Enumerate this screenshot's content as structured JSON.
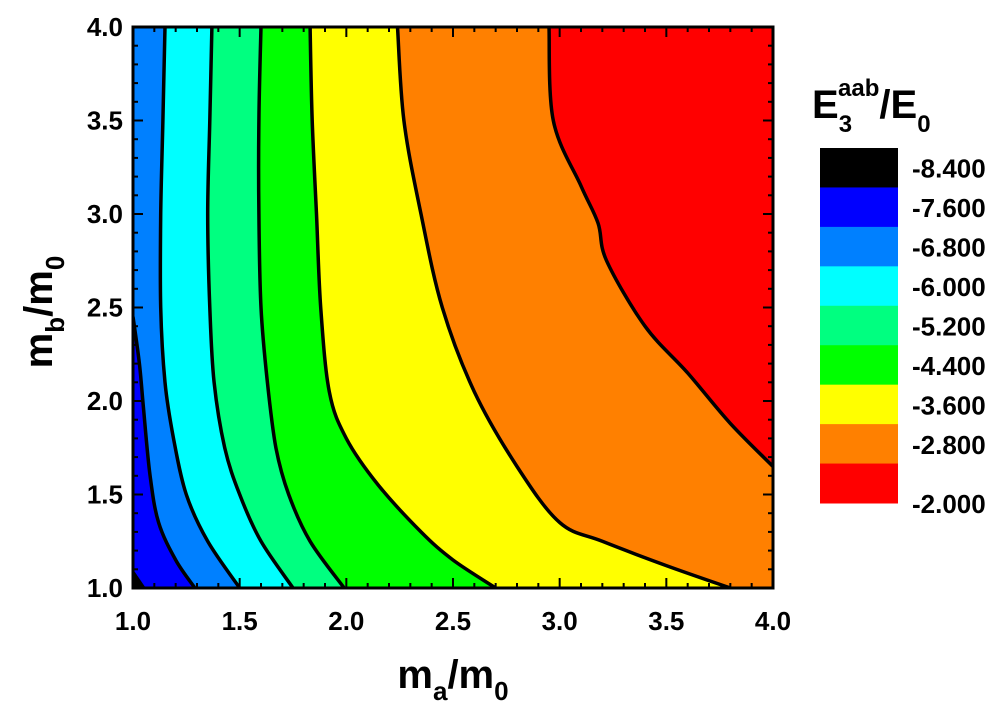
{
  "chart_data": {
    "type": "contour",
    "xlabel": {
      "main": "m",
      "sub": "a",
      "tail": "/m",
      "sub2": "0"
    },
    "ylabel": {
      "main": "m",
      "sub": "b",
      "tail": "/m",
      "sub2": "0"
    },
    "xlim": [
      1.0,
      4.0
    ],
    "ylim": [
      1.0,
      4.0
    ],
    "xticks": [
      "1.0",
      "1.5",
      "2.0",
      "2.5",
      "3.0",
      "3.5",
      "4.0"
    ],
    "yticks": [
      "1.0",
      "1.5",
      "2.0",
      "2.5",
      "3.0",
      "3.5",
      "4.0"
    ],
    "colorbar": {
      "title": {
        "main": "E",
        "sub": "3",
        "sup": "aab",
        "tail": "/E",
        "sub2": "0"
      },
      "levels": [
        -8.4,
        -7.6,
        -6.8,
        -6.0,
        -5.2,
        -4.4,
        -3.6,
        -2.8,
        -2.0
      ],
      "level_labels": [
        "-8.400",
        "-7.600",
        "-6.800",
        "-6.000",
        "-5.200",
        "-4.400",
        "-3.600",
        "-2.800",
        "-2.000"
      ],
      "band_colors": [
        "#000000",
        "#0000ff",
        "#0080ff",
        "#00ffff",
        "#00ff80",
        "#00ff00",
        "#ffff00",
        "#ff8000",
        "#ff0000"
      ]
    },
    "contours": [
      {
        "level": -7.6,
        "points": [
          [
            1.0,
            2.45
          ],
          [
            1.03,
            2.2
          ],
          [
            1.05,
            1.95
          ],
          [
            1.08,
            1.6
          ],
          [
            1.12,
            1.35
          ],
          [
            1.2,
            1.15
          ],
          [
            1.29,
            1.0
          ]
        ]
      },
      {
        "level": -6.8,
        "points": [
          [
            1.15,
            4.0
          ],
          [
            1.14,
            3.5
          ],
          [
            1.13,
            3.0
          ],
          [
            1.13,
            2.5
          ],
          [
            1.15,
            2.1
          ],
          [
            1.19,
            1.8
          ],
          [
            1.25,
            1.5
          ],
          [
            1.35,
            1.25
          ],
          [
            1.5,
            1.0
          ]
        ]
      },
      {
        "level": -6.0,
        "points": [
          [
            1.37,
            4.0
          ],
          [
            1.36,
            3.5
          ],
          [
            1.35,
            3.0
          ],
          [
            1.36,
            2.5
          ],
          [
            1.38,
            2.1
          ],
          [
            1.43,
            1.75
          ],
          [
            1.5,
            1.5
          ],
          [
            1.6,
            1.25
          ],
          [
            1.75,
            1.0
          ]
        ]
      },
      {
        "level": -5.2,
        "points": [
          [
            1.6,
            4.0
          ],
          [
            1.59,
            3.5
          ],
          [
            1.59,
            3.0
          ],
          [
            1.6,
            2.5
          ],
          [
            1.63,
            2.1
          ],
          [
            1.67,
            1.75
          ],
          [
            1.73,
            1.5
          ],
          [
            1.83,
            1.25
          ],
          [
            1.99,
            1.0
          ]
        ]
      },
      {
        "level": -4.4,
        "points": [
          [
            1.83,
            4.0
          ],
          [
            1.84,
            3.5
          ],
          [
            1.86,
            3.0
          ],
          [
            1.88,
            2.5
          ],
          [
            1.92,
            2.05
          ],
          [
            2.0,
            1.8
          ],
          [
            2.15,
            1.55
          ],
          [
            2.35,
            1.3
          ],
          [
            2.5,
            1.15
          ],
          [
            2.7,
            1.0
          ]
        ]
      },
      {
        "level": -3.6,
        "points": [
          [
            2.24,
            4.0
          ],
          [
            2.27,
            3.5
          ],
          [
            2.35,
            3.0
          ],
          [
            2.45,
            2.5
          ],
          [
            2.6,
            2.05
          ],
          [
            2.8,
            1.65
          ],
          [
            3.0,
            1.35
          ],
          [
            3.2,
            1.25
          ],
          [
            3.5,
            1.12
          ],
          [
            3.8,
            1.0
          ]
        ]
      },
      {
        "level": -2.8,
        "points": [
          [
            2.95,
            4.0
          ],
          [
            2.97,
            3.5
          ],
          [
            3.1,
            3.15
          ],
          [
            3.18,
            2.95
          ],
          [
            3.22,
            2.75
          ],
          [
            3.4,
            2.4
          ],
          [
            3.6,
            2.15
          ],
          [
            3.8,
            1.88
          ],
          [
            4.0,
            1.65
          ]
        ]
      }
    ]
  }
}
